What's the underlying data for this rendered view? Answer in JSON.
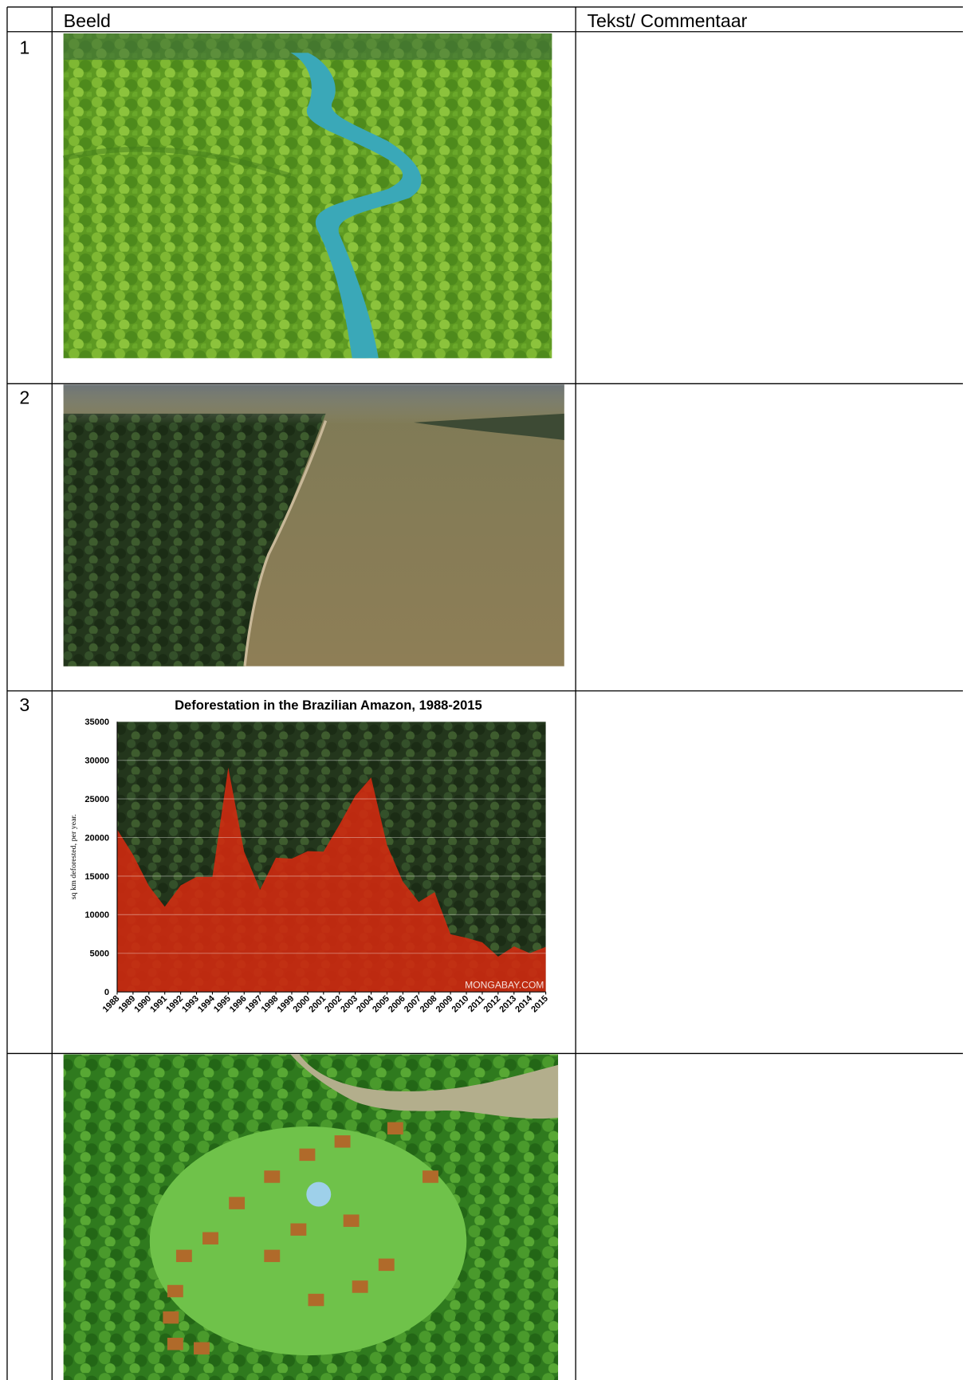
{
  "table": {
    "header": {
      "image_column": "Beeld",
      "text_column": "Tekst/ Commentaar"
    },
    "rows": [
      {
        "number": 1
      },
      {
        "number": 2
      },
      {
        "number": 3,
        "chart": {
          "type": "area",
          "title": "Deforestation in the Brazilian Amazon, 1988-2015",
          "y_label": "sq km deforested, per year.",
          "annotation": "MONGABAY.COM",
          "x": [
            1988,
            1989,
            1990,
            1991,
            1992,
            1993,
            1994,
            1995,
            1996,
            1997,
            1998,
            1999,
            2000,
            2001,
            2002,
            2003,
            2004,
            2005,
            2006,
            2007,
            2008,
            2009,
            2010,
            2011,
            2012,
            2013,
            2014,
            2015
          ],
          "values": [
            21050,
            17770,
            13730,
            11030,
            13786,
            14896,
            14896,
            29059,
            18161,
            13227,
            17383,
            17259,
            18226,
            18165,
            21651,
            25396,
            27772,
            19014,
            14286,
            11651,
            12911,
            7464,
            7000,
            6418,
            4571,
            5891,
            5012,
            5831
          ],
          "color": "#d42a10",
          "xlim": [
            1988,
            2015
          ],
          "xticks": [
            1988,
            1989,
            1990,
            1991,
            1992,
            1993,
            1994,
            1995,
            1996,
            1997,
            1998,
            1999,
            2000,
            2001,
            2002,
            2003,
            2004,
            2005,
            2006,
            2007,
            2008,
            2009,
            2010,
            2011,
            2012,
            2013,
            2014,
            2015
          ],
          "ylim": [
            0,
            35000
          ],
          "yticks": [
            0,
            5000,
            10000,
            15000,
            20000,
            25000,
            30000,
            35000
          ],
          "grid": true
        }
      }
    ]
  }
}
